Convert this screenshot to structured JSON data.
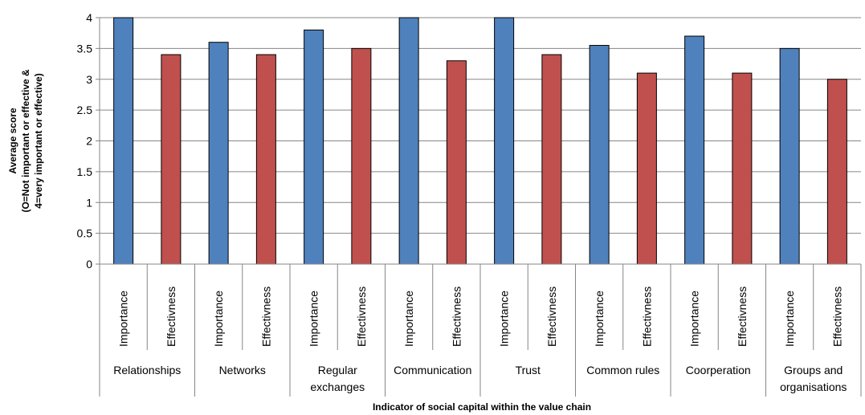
{
  "chart_data": {
    "type": "bar",
    "ylabel_lines": [
      "Average score",
      "(O=Not important or effective &",
      "4=very important or effective)"
    ],
    "xlabel": "Indicator of social capital within the value chain",
    "ylim": [
      0,
      4
    ],
    "yticks": [
      0,
      0.5,
      1,
      1.5,
      2,
      2.5,
      3,
      3.5,
      4
    ],
    "grid": true,
    "groups": [
      {
        "label_lines": [
          "Relationships"
        ],
        "bars": [
          {
            "label": "Importance",
            "value": 4.0,
            "color": "#4F81BD"
          },
          {
            "label": "Effectivness",
            "value": 3.4,
            "color": "#C0504D"
          }
        ]
      },
      {
        "label_lines": [
          "Networks"
        ],
        "bars": [
          {
            "label": "Importance",
            "value": 3.6,
            "color": "#4F81BD"
          },
          {
            "label": "Effectivness",
            "value": 3.4,
            "color": "#C0504D"
          }
        ]
      },
      {
        "label_lines": [
          "Regular",
          "exchanges"
        ],
        "bars": [
          {
            "label": "Importance",
            "value": 3.8,
            "color": "#4F81BD"
          },
          {
            "label": "Effectivness",
            "value": 3.5,
            "color": "#C0504D"
          }
        ]
      },
      {
        "label_lines": [
          "Communication"
        ],
        "bars": [
          {
            "label": "Importance",
            "value": 4.0,
            "color": "#4F81BD"
          },
          {
            "label": "Effectivness",
            "value": 3.3,
            "color": "#C0504D"
          }
        ]
      },
      {
        "label_lines": [
          "Trust"
        ],
        "bars": [
          {
            "label": "Importance",
            "value": 4.0,
            "color": "#4F81BD"
          },
          {
            "label": "Effectivness",
            "value": 3.4,
            "color": "#C0504D"
          }
        ]
      },
      {
        "label_lines": [
          "Common rules"
        ],
        "bars": [
          {
            "label": "Importance",
            "value": 3.55,
            "color": "#4F81BD"
          },
          {
            "label": "Effectivness",
            "value": 3.1,
            "color": "#C0504D"
          }
        ]
      },
      {
        "label_lines": [
          "Coorperation"
        ],
        "bars": [
          {
            "label": "Importance",
            "value": 3.7,
            "color": "#4F81BD"
          },
          {
            "label": "Effectivness",
            "value": 3.1,
            "color": "#C0504D"
          }
        ]
      },
      {
        "label_lines": [
          "Groups and",
          "organisations"
        ],
        "bars": [
          {
            "label": "Importance",
            "value": 3.5,
            "color": "#4F81BD"
          },
          {
            "label": "Effectivness",
            "value": 3.0,
            "color": "#C0504D"
          }
        ]
      }
    ]
  }
}
